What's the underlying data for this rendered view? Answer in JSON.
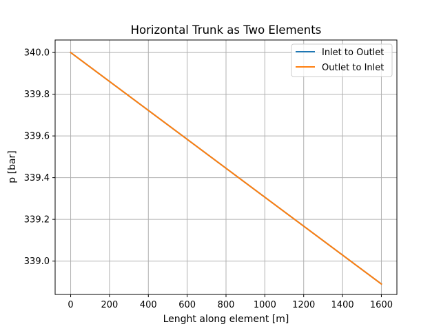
{
  "chart_data": {
    "type": "line",
    "title": "Horizontal Trunk as Two Elements",
    "xlabel": "Lenght along element [m]",
    "ylabel": "p [bar]",
    "xlim": [
      -80,
      1680
    ],
    "ylim": [
      338.84,
      340.06
    ],
    "xticks": [
      0,
      200,
      400,
      600,
      800,
      1000,
      1200,
      1400,
      1600
    ],
    "xtick_labels": [
      "0",
      "200",
      "400",
      "600",
      "800",
      "1000",
      "1200",
      "1400",
      "1600"
    ],
    "yticks": [
      339.0,
      339.2,
      339.4,
      339.6,
      339.8,
      340.0
    ],
    "ytick_labels": [
      "339.0",
      "339.2",
      "339.4",
      "339.6",
      "339.8",
      "340.0"
    ],
    "grid": true,
    "legend_position": "top-right",
    "series": [
      {
        "name": "Inlet to Outlet",
        "color": "#1f77b4",
        "x": [
          0,
          1600
        ],
        "y": [
          340.0,
          338.89
        ]
      },
      {
        "name": "Outlet to Inlet",
        "color": "#ff7f0e",
        "x": [
          0,
          1600
        ],
        "y": [
          340.0,
          338.89
        ]
      }
    ]
  }
}
